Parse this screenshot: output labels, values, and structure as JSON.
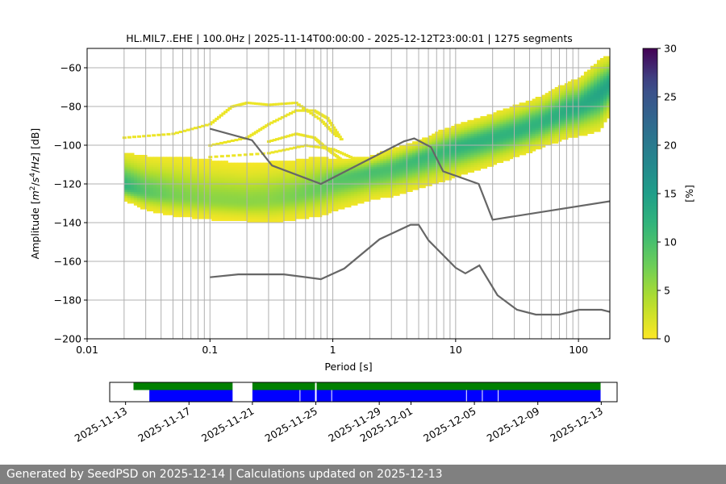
{
  "title": "HL.MIL7..EHE | 100.0Hz | 2025-11-14T00:00:00 - 2025-12-12T23:00:01 | 1275 segments",
  "footer": "Generated by SeedPSD on 2025-12-14 | Calculations updated on 2025-12-13",
  "colors": {
    "model_line": "#666666",
    "data_green": "#008000",
    "data_blue": "#0000ff",
    "grid": "#b0b0b0"
  },
  "chart_data": [
    {
      "type": "heatmap",
      "xlabel": "Period [s]",
      "ylabel_parts": [
        "Amplitude [",
        "m",
        "2",
        "/",
        "s",
        "4",
        "/",
        "Hz",
        "] [dB]"
      ],
      "x_scale": "log",
      "xlim": [
        0.01,
        180
      ],
      "ylim": [
        -200,
        -50
      ],
      "x_ticks": [
        {
          "value": 0.01,
          "label": "0.01"
        },
        {
          "value": 0.1,
          "label": "0.1"
        },
        {
          "value": 1,
          "label": "1"
        },
        {
          "value": 10,
          "label": "10"
        },
        {
          "value": 100,
          "label": "100"
        }
      ],
      "y_ticks": [
        {
          "value": -60,
          "label": "−60"
        },
        {
          "value": -80,
          "label": "−80"
        },
        {
          "value": -100,
          "label": "−100"
        },
        {
          "value": -120,
          "label": "−120"
        },
        {
          "value": -140,
          "label": "−140"
        },
        {
          "value": -160,
          "label": "−160"
        },
        {
          "value": -180,
          "label": "−180"
        },
        {
          "value": -200,
          "label": "−200"
        }
      ],
      "grid": true,
      "colorbar": {
        "label": "[%]",
        "range": [
          0,
          30
        ],
        "ticks": [
          {
            "value": 0,
            "label": "0"
          },
          {
            "value": 5,
            "label": "5"
          },
          {
            "value": 10,
            "label": "10"
          },
          {
            "value": 15,
            "label": "15"
          },
          {
            "value": 20,
            "label": "20"
          },
          {
            "value": 25,
            "label": "25"
          },
          {
            "value": 30,
            "label": "30"
          }
        ],
        "colormap": "viridis"
      },
      "psd_band": [
        {
          "period": 0.02,
          "low": -128,
          "high": -104,
          "mode": -121,
          "peak_pct": 12
        },
        {
          "period": 0.03,
          "low": -133,
          "high": -106,
          "mode": -124,
          "peak_pct": 9
        },
        {
          "period": 0.05,
          "low": -136,
          "high": -106,
          "mode": -126,
          "peak_pct": 7
        },
        {
          "period": 0.1,
          "low": -138,
          "high": -108,
          "mode": -128,
          "peak_pct": 6
        },
        {
          "period": 0.2,
          "low": -139,
          "high": -110,
          "mode": -129,
          "peak_pct": 6
        },
        {
          "period": 0.3,
          "low": -140,
          "high": -109,
          "mode": -128,
          "peak_pct": 6
        },
        {
          "period": 0.5,
          "low": -138,
          "high": -108,
          "mode": -126,
          "peak_pct": 7
        },
        {
          "period": 0.8,
          "low": -136,
          "high": -106,
          "mode": -122,
          "peak_pct": 8
        },
        {
          "period": 1,
          "low": -134,
          "high": -108,
          "mode": -118,
          "peak_pct": 9
        },
        {
          "period": 2,
          "low": -128,
          "high": -106,
          "mode": -114,
          "peak_pct": 10
        },
        {
          "period": 3,
          "low": -126,
          "high": -102,
          "mode": -112,
          "peak_pct": 10
        },
        {
          "period": 5,
          "low": -122,
          "high": -98,
          "mode": -107,
          "peak_pct": 11
        },
        {
          "period": 8,
          "low": -118,
          "high": -92,
          "mode": -103,
          "peak_pct": 11
        },
        {
          "period": 10,
          "low": -116,
          "high": -90,
          "mode": -101,
          "peak_pct": 12
        },
        {
          "period": 20,
          "low": -110,
          "high": -84,
          "mode": -96,
          "peak_pct": 12
        },
        {
          "period": 30,
          "low": -106,
          "high": -80,
          "mode": -93,
          "peak_pct": 12
        },
        {
          "period": 50,
          "low": -101,
          "high": -75,
          "mode": -88,
          "peak_pct": 12
        },
        {
          "period": 80,
          "low": -96,
          "high": -68,
          "mode": -82,
          "peak_pct": 13
        },
        {
          "period": 100,
          "low": -95,
          "high": -66,
          "mode": -80,
          "peak_pct": 13
        },
        {
          "period": 150,
          "low": -92,
          "high": -56,
          "mode": -73,
          "peak_pct": 14
        },
        {
          "period": 180,
          "low": -84,
          "high": -54,
          "mode": -68,
          "peak_pct": 14
        }
      ],
      "psd_arches": [
        [
          [
            0.02,
            -96
          ],
          [
            0.05,
            -94
          ],
          [
            0.1,
            -89
          ],
          [
            0.15,
            -80
          ],
          [
            0.2,
            -78
          ],
          [
            0.3,
            -79
          ],
          [
            0.5,
            -78
          ],
          [
            0.8,
            -87
          ],
          [
            1.1,
            -96
          ]
        ],
        [
          [
            0.1,
            -100
          ],
          [
            0.2,
            -96
          ],
          [
            0.3,
            -89
          ],
          [
            0.5,
            -82
          ],
          [
            0.7,
            -82
          ],
          [
            0.9,
            -86
          ],
          [
            1.2,
            -98
          ]
        ],
        [
          [
            0.1,
            -106
          ],
          [
            0.3,
            -104
          ],
          [
            0.6,
            -100
          ],
          [
            1,
            -102
          ],
          [
            1.5,
            -107
          ]
        ],
        [
          [
            0.3,
            -98
          ],
          [
            0.5,
            -94
          ],
          [
            0.7,
            -96
          ],
          [
            0.9,
            -102
          ],
          [
            1.2,
            -108
          ]
        ]
      ],
      "series": [
        {
          "style": "model",
          "points": [
            [
              0.1,
              -91.5
            ],
            [
              0.22,
              -97.4
            ],
            [
              0.32,
              -110.5
            ],
            [
              0.8,
              -120
            ],
            [
              3.8,
              -98
            ],
            [
              4.6,
              -96.5
            ],
            [
              6.3,
              -101
            ],
            [
              7.9,
              -113.5
            ],
            [
              15.4,
              -120
            ],
            [
              20,
              -138.5
            ],
            [
              354.8,
              -126
            ]
          ]
        },
        {
          "style": "model",
          "points": [
            [
              0.1,
              -168.2
            ],
            [
              0.17,
              -166.7
            ],
            [
              0.4,
              -166.7
            ],
            [
              0.8,
              -169.2
            ],
            [
              1.24,
              -163.7
            ],
            [
              2.4,
              -148.6
            ],
            [
              4.3,
              -141.1
            ],
            [
              5,
              -141.1
            ],
            [
              6,
              -149.1
            ],
            [
              10,
              -163.3
            ],
            [
              12,
              -166.2
            ],
            [
              15.6,
              -162.1
            ],
            [
              21.9,
              -177.5
            ],
            [
              31.6,
              -185
            ],
            [
              45,
              -187.5
            ],
            [
              70,
              -187.5
            ],
            [
              101,
              -185
            ],
            [
              154,
              -185
            ],
            [
              218.7,
              -187.5
            ]
          ]
        }
      ]
    },
    {
      "type": "table",
      "x_ticks": [
        {
          "value": "2025-11-13",
          "label": "2025-11-13"
        },
        {
          "value": "2025-11-17",
          "label": "2025-11-17"
        },
        {
          "value": "2025-11-21",
          "label": "2025-11-21"
        },
        {
          "value": "2025-11-25",
          "label": "2025-11-25"
        },
        {
          "value": "2025-11-29",
          "label": "2025-11-29"
        },
        {
          "value": "2025-12-01",
          "label": "2025-12-01"
        },
        {
          "value": "2025-12-05",
          "label": "2025-12-05"
        },
        {
          "value": "2025-12-09",
          "label": "2025-12-09"
        },
        {
          "value": "2025-12-13",
          "label": "2025-12-13"
        }
      ],
      "xlim": [
        "2025-11-12",
        "2025-12-14"
      ],
      "green_spans": [
        [
          "2025-11-13T12:00",
          "2025-11-19T18:00"
        ],
        [
          "2025-11-21T00:00",
          "2025-12-12T23:00"
        ]
      ],
      "blue_spans": [
        [
          "2025-11-14T12:00",
          "2025-11-19T18:00"
        ],
        [
          "2025-11-21T00:00",
          "2025-12-12T23:00"
        ]
      ],
      "gaps": [
        "2025-11-24T00:00",
        "2025-11-25T00:00",
        "2025-11-26T00:00",
        "2025-12-04T12:00",
        "2025-12-05T12:00",
        "2025-12-06T12:00"
      ]
    }
  ]
}
